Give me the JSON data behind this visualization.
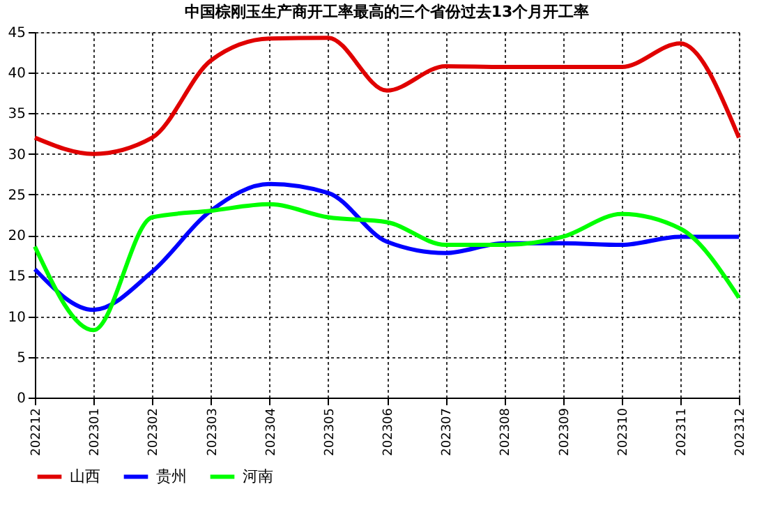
{
  "chart_data": {
    "type": "line",
    "title": "中国棕刚玉生产商开工率最高的三个省份过去13个月开工率",
    "categories": [
      "202212",
      "202301",
      "202302",
      "202303",
      "202304",
      "202305",
      "202306",
      "202307",
      "202308",
      "202309",
      "202310",
      "202311",
      "202312"
    ],
    "series": [
      {
        "name": "山西",
        "color": "#e00000",
        "values": [
          32,
          30,
          32,
          41.5,
          44.2,
          44.3,
          37.8,
          40.8,
          40.7,
          40.7,
          40.7,
          43.6,
          32
        ]
      },
      {
        "name": "贵州",
        "color": "#0000ff",
        "values": [
          15.8,
          10.8,
          15.5,
          23,
          26.3,
          25.2,
          19.2,
          17.8,
          19,
          19,
          18.8,
          19.8,
          19.8
        ]
      },
      {
        "name": "河南",
        "color": "#00ff00",
        "values": [
          18.6,
          8.3,
          22.2,
          23,
          23.8,
          22.2,
          21.6,
          18.8,
          18.8,
          19.8,
          22.6,
          20.8,
          12.3
        ]
      }
    ],
    "ylim": [
      0,
      45
    ],
    "yticks": [
      0,
      5,
      10,
      15,
      20,
      25,
      30,
      35,
      40,
      45
    ],
    "grid": true,
    "legend": "bottom",
    "marker": "none",
    "line_style": "solid"
  }
}
